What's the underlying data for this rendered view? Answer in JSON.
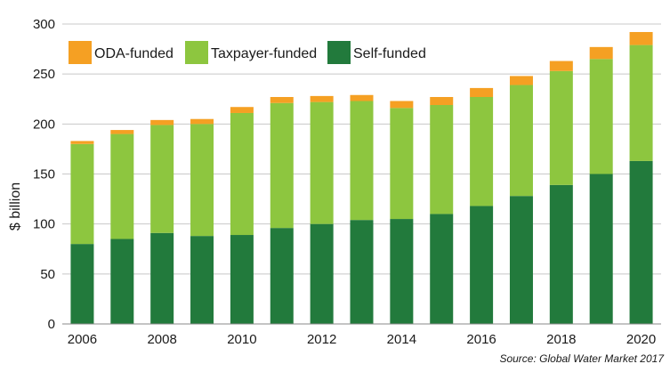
{
  "chart_data": {
    "type": "bar",
    "stacked": true,
    "title": "",
    "xlabel": "",
    "ylabel": "$ billion",
    "ylim": [
      0,
      300
    ],
    "yticks": [
      0,
      50,
      100,
      150,
      200,
      250,
      300
    ],
    "grid": true,
    "legend_position": "top-left",
    "categories": [
      "2006",
      "2007",
      "2008",
      "2009",
      "2010",
      "2011",
      "2012",
      "2013",
      "2014",
      "2015",
      "2016",
      "2017",
      "2018",
      "2019",
      "2020"
    ],
    "x_tick_labels": [
      "2006",
      "",
      "2008",
      "",
      "2010",
      "",
      "2012",
      "",
      "2014",
      "",
      "2016",
      "",
      "2018",
      "",
      "2020"
    ],
    "series": [
      {
        "name": "Self-funded",
        "color": "#227a3c",
        "values": [
          80,
          85,
          91,
          88,
          89,
          96,
          100,
          104,
          105,
          110,
          118,
          128,
          139,
          150,
          163
        ]
      },
      {
        "name": "Taxpayer-funded",
        "color": "#8dc63f",
        "values": [
          100,
          105,
          108,
          112,
          122,
          125,
          122,
          119,
          111,
          109,
          109,
          111,
          114,
          115,
          116
        ]
      },
      {
        "name": "ODA-funded",
        "color": "#f5a023",
        "values": [
          3,
          4,
          5,
          5,
          6,
          6,
          6,
          6,
          7,
          8,
          9,
          9,
          10,
          12,
          13
        ]
      }
    ],
    "legend_order": [
      "ODA-funded",
      "Taxpayer-funded",
      "Self-funded"
    ],
    "source": "Source: Global Water Market 2017"
  }
}
